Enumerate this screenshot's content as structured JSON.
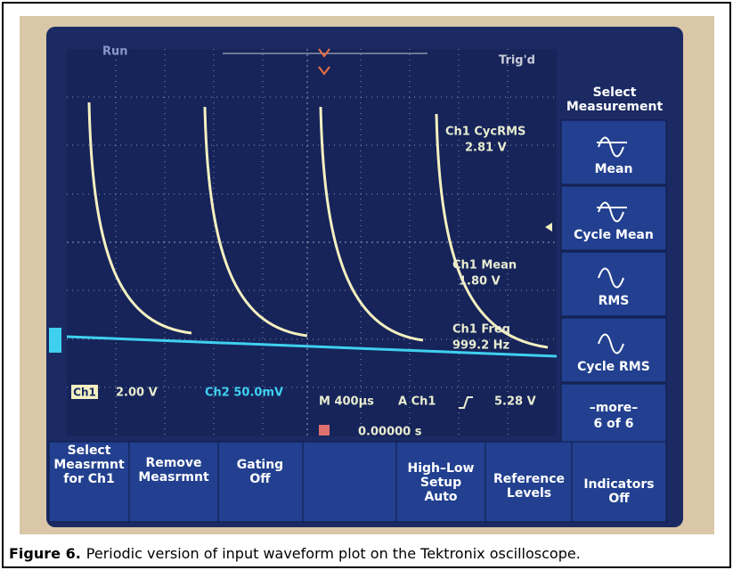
{
  "status": {
    "run": "Run",
    "trigger": "Trig'd"
  },
  "menu": {
    "title": [
      "Select",
      "Measurement"
    ],
    "items": [
      [
        "Mean"
      ],
      [
        "Cycle Mean"
      ],
      [
        "RMS"
      ],
      [
        "Cycle RMS"
      ],
      [
        "–more–",
        "6 of 6"
      ]
    ]
  },
  "measurements": [
    {
      "name": "Ch1 CycRMS",
      "value": "2.81 V"
    },
    {
      "name": "Ch1 Mean",
      "value": "1.80 V"
    },
    {
      "name": "Ch1 Freq",
      "value": "999.2 Hz"
    }
  ],
  "readout": {
    "ch1": "Ch1",
    "ch1_scale": "2.00 V",
    "ch2_scale": "Ch2 50.0mV",
    "timebase": "M 400µs",
    "trigger_source": "A Ch1",
    "trigger_level": "5.28 V",
    "position": "0.00000 s"
  },
  "buttons": [
    [
      "Select",
      "Measrmnt",
      "for Ch1"
    ],
    [
      "Remove",
      "Measrmnt"
    ],
    [
      "Gating",
      "Off"
    ],
    [
      "High–Low",
      "Setup",
      "Auto"
    ],
    [
      "Reference",
      "Levels"
    ],
    [
      "Indicators",
      "Off"
    ]
  ],
  "caption": {
    "label": "Figure 6.",
    "text": "Periodic version of input waveform plot on the Tektronix oscilloscope."
  }
}
